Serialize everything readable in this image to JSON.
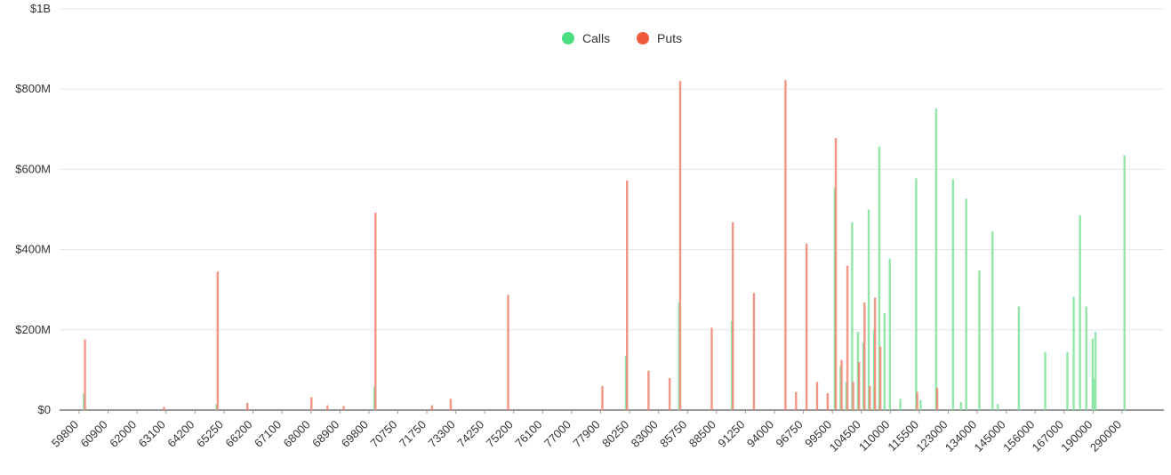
{
  "chart_data": {
    "type": "bar",
    "title": "",
    "xlabel": "",
    "ylabel": "",
    "ylim": [
      0,
      1000000000
    ],
    "grid": true,
    "legend": "top-center",
    "y_ticks": [
      {
        "value": 0,
        "label": "$0"
      },
      {
        "value": 200000000,
        "label": "$200M"
      },
      {
        "value": 400000000,
        "label": "$400M"
      },
      {
        "value": 600000000,
        "label": "$600M"
      },
      {
        "value": 800000000,
        "label": "$800M"
      },
      {
        "value": 1000000000,
        "label": "$1B"
      }
    ],
    "x_tick_labels": [
      "59800",
      "60900",
      "62000",
      "63100",
      "64200",
      "65250",
      "66200",
      "67100",
      "68000",
      "68900",
      "69800",
      "70750",
      "71750",
      "73300",
      "74250",
      "75200",
      "76100",
      "77000",
      "77900",
      "80250",
      "83000",
      "85750",
      "88500",
      "91250",
      "94000",
      "96750",
      "99500",
      "104500",
      "110000",
      "115500",
      "123000",
      "134000",
      "145000",
      "156000",
      "167000",
      "190000",
      "290000"
    ],
    "series": [
      {
        "name": "Calls",
        "color": "#4ade80",
        "bar_color": "#86e3a0",
        "values": [
          {
            "x": 60000,
            "y": 42000000
          },
          {
            "x": 65000,
            "y": 15000000
          },
          {
            "x": 70000,
            "y": 58000000
          },
          {
            "x": 80000,
            "y": 135000000
          },
          {
            "x": 85000,
            "y": 268000000
          },
          {
            "x": 90000,
            "y": 222000000
          },
          {
            "x": 100000,
            "y": 555000000
          },
          {
            "x": 101000,
            "y": 110000000
          },
          {
            "x": 102000,
            "y": 70000000
          },
          {
            "x": 103000,
            "y": 468000000
          },
          {
            "x": 104000,
            "y": 195000000
          },
          {
            "x": 105000,
            "y": 168000000
          },
          {
            "x": 106000,
            "y": 500000000
          },
          {
            "x": 107000,
            "y": 200000000
          },
          {
            "x": 108000,
            "y": 657000000
          },
          {
            "x": 109000,
            "y": 242000000
          },
          {
            "x": 110000,
            "y": 378000000
          },
          {
            "x": 112000,
            "y": 28000000
          },
          {
            "x": 115000,
            "y": 578000000
          },
          {
            "x": 116000,
            "y": 25000000
          },
          {
            "x": 120000,
            "y": 752000000
          },
          {
            "x": 125000,
            "y": 575000000
          },
          {
            "x": 128000,
            "y": 20000000
          },
          {
            "x": 130000,
            "y": 527000000
          },
          {
            "x": 135000,
            "y": 348000000
          },
          {
            "x": 140000,
            "y": 445000000
          },
          {
            "x": 142000,
            "y": 15000000
          },
          {
            "x": 150000,
            "y": 258000000
          },
          {
            "x": 160000,
            "y": 145000000
          },
          {
            "x": 170000,
            "y": 145000000
          },
          {
            "x": 175000,
            "y": 282000000
          },
          {
            "x": 180000,
            "y": 485000000
          },
          {
            "x": 185000,
            "y": 258000000
          },
          {
            "x": 190000,
            "y": 178000000
          },
          {
            "x": 195000,
            "y": 78000000
          },
          {
            "x": 200000,
            "y": 195000000
          },
          {
            "x": 300000,
            "y": 635000000
          }
        ]
      },
      {
        "name": "Puts",
        "color": "#f05a3c",
        "bar_color": "#f08a78",
        "values": [
          {
            "x": 60000,
            "y": 176000000
          },
          {
            "x": 63000,
            "y": 8000000
          },
          {
            "x": 65000,
            "y": 345000000
          },
          {
            "x": 66000,
            "y": 18000000
          },
          {
            "x": 68000,
            "y": 32000000
          },
          {
            "x": 68500,
            "y": 12000000
          },
          {
            "x": 69000,
            "y": 10000000
          },
          {
            "x": 70000,
            "y": 492000000
          },
          {
            "x": 72000,
            "y": 12000000
          },
          {
            "x": 73000,
            "y": 28000000
          },
          {
            "x": 75000,
            "y": 287000000
          },
          {
            "x": 78000,
            "y": 60000000
          },
          {
            "x": 80000,
            "y": 572000000
          },
          {
            "x": 82000,
            "y": 98000000
          },
          {
            "x": 84000,
            "y": 80000000
          },
          {
            "x": 85000,
            "y": 820000000
          },
          {
            "x": 88000,
            "y": 205000000
          },
          {
            "x": 90000,
            "y": 468000000
          },
          {
            "x": 92000,
            "y": 292000000
          },
          {
            "x": 95000,
            "y": 823000000
          },
          {
            "x": 96000,
            "y": 45000000
          },
          {
            "x": 97000,
            "y": 415000000
          },
          {
            "x": 98000,
            "y": 70000000
          },
          {
            "x": 99000,
            "y": 42000000
          },
          {
            "x": 100000,
            "y": 678000000
          },
          {
            "x": 101000,
            "y": 125000000
          },
          {
            "x": 102000,
            "y": 360000000
          },
          {
            "x": 103000,
            "y": 70000000
          },
          {
            "x": 104000,
            "y": 120000000
          },
          {
            "x": 105000,
            "y": 268000000
          },
          {
            "x": 106000,
            "y": 60000000
          },
          {
            "x": 107000,
            "y": 280000000
          },
          {
            "x": 108000,
            "y": 158000000
          },
          {
            "x": 115000,
            "y": 45000000
          },
          {
            "x": 120000,
            "y": 55000000
          }
        ]
      }
    ]
  }
}
